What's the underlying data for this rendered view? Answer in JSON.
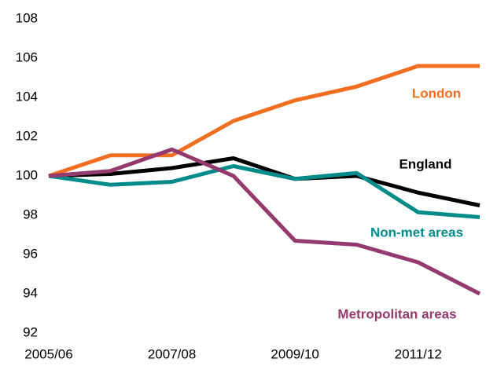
{
  "chart_data": {
    "type": "line",
    "categories": [
      "2005/06",
      null,
      "2007/08",
      null,
      "2009/10",
      null,
      "2011/12",
      null
    ],
    "series": [
      {
        "name": "London",
        "color": "#f26f21",
        "values": [
          100,
          101.05,
          101.05,
          102.8,
          103.85,
          104.55,
          105.6,
          105.6
        ]
      },
      {
        "name": "England",
        "color": "#000000",
        "values": [
          100,
          100.1,
          100.4,
          100.9,
          99.85,
          100.0,
          99.15,
          98.5
        ]
      },
      {
        "name": "Non-met areas",
        "color": "#008b8b",
        "values": [
          100,
          99.55,
          99.7,
          100.5,
          99.85,
          100.15,
          98.15,
          97.9
        ]
      },
      {
        "name": "Metropolitan areas",
        "color": "#953a6e",
        "values": [
          100,
          100.25,
          101.35,
          100.0,
          96.7,
          96.5,
          95.6,
          94.0
        ]
      }
    ],
    "ylim": [
      92,
      108
    ],
    "yticks": [
      92,
      94,
      96,
      98,
      100,
      102,
      104,
      106,
      108
    ],
    "grid": false
  }
}
